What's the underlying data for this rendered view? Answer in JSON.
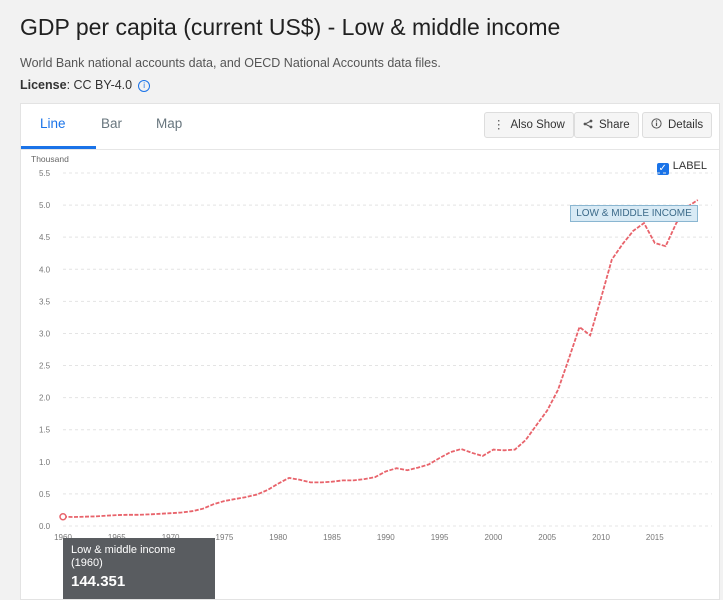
{
  "page": {
    "title": "GDP per capita (current US$) - Low & middle income",
    "subtitle": "World Bank national accounts data, and OECD National Accounts data files.",
    "license_label": "License",
    "license_value": ": CC BY-4.0"
  },
  "tabs": [
    {
      "label": "Line",
      "active": true
    },
    {
      "label": "Bar",
      "active": false
    },
    {
      "label": "Map",
      "active": false
    }
  ],
  "toolbar": {
    "also_show": "Also Show",
    "share": "Share",
    "details": "Details"
  },
  "label_toggle": {
    "label": "LABEL",
    "checked": true
  },
  "series_tag": "LOW & MIDDLE INCOME",
  "tooltip": {
    "series": "Low & middle income",
    "year": "(1960)",
    "value": "144.351"
  },
  "colors": {
    "accent": "#1a73e8",
    "series": "#e8636b",
    "tooltip_bg": "#595c60"
  },
  "chart_data": {
    "type": "line",
    "ylabel": "Thousand",
    "ylim": [
      0,
      5.5
    ],
    "yticks": [
      "0.0",
      "0.5",
      "1.0",
      "1.5",
      "2.0",
      "2.5",
      "3.0",
      "3.5",
      "4.0",
      "4.5",
      "5.0",
      "5.5"
    ],
    "xlim": [
      1960,
      2019
    ],
    "xticks": [
      "1960",
      "1965",
      "1970",
      "1975",
      "1980",
      "1985",
      "1990",
      "1995",
      "2000",
      "2005",
      "2010",
      "2015"
    ],
    "grid": true,
    "series": [
      {
        "name": "Low & middle income",
        "x": [
          1960,
          1961,
          1962,
          1963,
          1964,
          1965,
          1966,
          1967,
          1968,
          1969,
          1970,
          1971,
          1972,
          1973,
          1974,
          1975,
          1976,
          1977,
          1978,
          1979,
          1980,
          1981,
          1982,
          1983,
          1984,
          1985,
          1986,
          1987,
          1988,
          1989,
          1990,
          1991,
          1992,
          1993,
          1994,
          1995,
          1996,
          1997,
          1998,
          1999,
          2000,
          2001,
          2002,
          2003,
          2004,
          2005,
          2006,
          2007,
          2008,
          2009,
          2010,
          2011,
          2012,
          2013,
          2014,
          2015,
          2016,
          2017,
          2018,
          2019
        ],
        "values": [
          0.144,
          0.14,
          0.145,
          0.15,
          0.16,
          0.17,
          0.175,
          0.175,
          0.18,
          0.19,
          0.2,
          0.21,
          0.23,
          0.27,
          0.34,
          0.39,
          0.42,
          0.45,
          0.49,
          0.56,
          0.66,
          0.75,
          0.72,
          0.68,
          0.68,
          0.69,
          0.71,
          0.71,
          0.73,
          0.76,
          0.85,
          0.9,
          0.87,
          0.91,
          0.96,
          1.06,
          1.15,
          1.2,
          1.14,
          1.09,
          1.19,
          1.18,
          1.19,
          1.34,
          1.57,
          1.8,
          2.12,
          2.6,
          3.1,
          2.97,
          3.55,
          4.15,
          4.39,
          4.6,
          4.72,
          4.41,
          4.36,
          4.72,
          4.97,
          5.08
        ]
      }
    ]
  }
}
